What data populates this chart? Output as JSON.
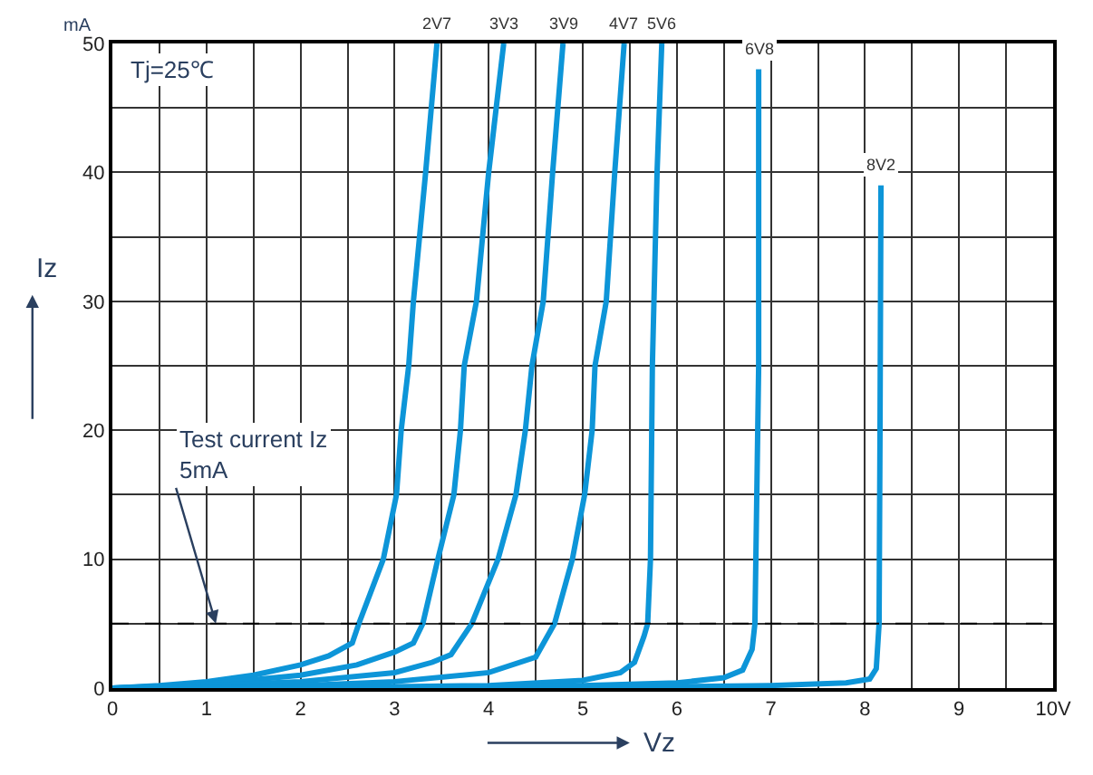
{
  "chart_data": {
    "type": "line",
    "xlabel": "Vz",
    "ylabel": "Iz",
    "annotations": [
      "Tj=25℃",
      "mA",
      {
        "text": "Test current Iz\n5mA",
        "x": 1.1,
        "y": 5
      }
    ],
    "xlim": [
      0,
      10
    ],
    "ylim": [
      0,
      50
    ],
    "xticks": [
      0,
      {
        "value": 0.5,
        "label": null
      },
      1,
      {
        "value": 1.5,
        "label": null
      },
      2,
      {
        "value": 2.5,
        "label": null
      },
      3,
      {
        "value": 3.5,
        "label": null
      },
      4,
      {
        "value": 4.5,
        "label": null
      },
      5,
      {
        "value": 5.5,
        "label": null
      },
      6,
      {
        "value": 6.5,
        "label": null
      },
      7,
      {
        "value": 7.5,
        "label": null
      },
      8,
      {
        "value": 8.5,
        "label": null
      },
      9,
      {
        "value": 9.5,
        "label": null
      },
      {
        "value": 10,
        "label": "10V"
      }
    ],
    "yticks": [
      0,
      {
        "value": 5,
        "label": null
      },
      10,
      {
        "value": 15,
        "label": null
      },
      20,
      {
        "value": 25,
        "label": null
      },
      30,
      {
        "value": 35,
        "label": null
      },
      40,
      {
        "value": 45,
        "label": null
      },
      50
    ],
    "grid": true,
    "marker": "none",
    "line_style": "solid",
    "ref_lines": [
      {
        "axis": "y",
        "value": 5,
        "color": "#000000",
        "line_style": "dashed"
      }
    ],
    "series": [
      {
        "name": "2V7",
        "color": "#0d95d8",
        "x": [
          0,
          0.5,
          1,
          1.5,
          2,
          2.3,
          2.55,
          2.62,
          2.88,
          3.02,
          3.07,
          3.15,
          3.2,
          3.33,
          3.45
        ],
        "values": [
          0,
          0.2,
          0.5,
          1,
          1.8,
          2.5,
          3.5,
          5,
          10,
          15,
          20,
          25,
          30,
          40,
          50
        ]
      },
      {
        "name": "3V3",
        "color": "#0d95d8",
        "x": [
          0,
          1,
          2,
          2.6,
          3.0,
          3.2,
          3.3,
          3.46,
          3.63,
          3.7,
          3.74,
          3.87,
          4.0,
          4.16
        ],
        "values": [
          0,
          0.3,
          1,
          1.8,
          2.8,
          3.5,
          5,
          10,
          15,
          20,
          25,
          30,
          40,
          50
        ]
      },
      {
        "name": "3V9",
        "color": "#0d95d8",
        "x": [
          0,
          1,
          2,
          3,
          3.4,
          3.6,
          3.82,
          4.1,
          4.29,
          4.39,
          4.46,
          4.58,
          4.68,
          4.79
        ],
        "values": [
          0,
          0.2,
          0.5,
          1.2,
          2,
          2.6,
          5,
          10,
          15,
          20,
          25,
          30,
          40,
          50
        ]
      },
      {
        "name": "4V7",
        "color": "#0d95d8",
        "x": [
          0,
          2,
          3,
          4,
          4.5,
          4.7,
          4.89,
          5.02,
          5.1,
          5.13,
          5.25,
          5.34,
          5.44
        ],
        "values": [
          0,
          0.2,
          0.5,
          1.2,
          2.4,
          5,
          10,
          15,
          20,
          25,
          30,
          40,
          50
        ]
      },
      {
        "name": "5V6",
        "color": "#0d95d8",
        "x": [
          0,
          3,
          4,
          5,
          5.4,
          5.55,
          5.65,
          5.69,
          5.72,
          5.74,
          5.79,
          5.84
        ],
        "values": [
          0,
          0.1,
          0.2,
          0.6,
          1.2,
          2,
          4,
          5,
          10,
          25,
          40,
          50
        ]
      },
      {
        "name": "6V8",
        "color": "#0d95d8",
        "x": [
          0,
          4,
          5,
          6,
          6.5,
          6.7,
          6.8,
          6.83,
          6.85,
          6.87,
          6.87
        ],
        "values": [
          0,
          0.1,
          0.2,
          0.4,
          0.8,
          1.4,
          3,
          5,
          15,
          25,
          48
        ]
      },
      {
        "name": "8V2",
        "color": "#0d95d8",
        "x": [
          0,
          6,
          7,
          7.8,
          8.05,
          8.12,
          8.15,
          8.16,
          8.17
        ],
        "values": [
          0,
          0.1,
          0.2,
          0.4,
          0.7,
          1.5,
          5,
          20,
          39
        ]
      }
    ]
  }
}
